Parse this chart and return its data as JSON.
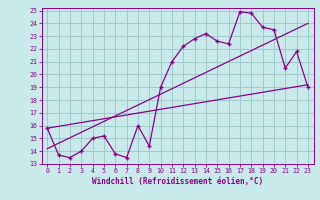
{
  "xlabel": "Windchill (Refroidissement éolien,°C)",
  "ylabel": "",
  "bg_color": "#c8eaea",
  "grid_color": "#a0c8c8",
  "line_color": "#8b008b",
  "xlim": [
    -0.5,
    23.5
  ],
  "ylim": [
    13,
    25.2
  ],
  "xticks": [
    0,
    1,
    2,
    3,
    4,
    5,
    6,
    7,
    8,
    9,
    10,
    11,
    12,
    13,
    14,
    15,
    16,
    17,
    18,
    19,
    20,
    21,
    22,
    23
  ],
  "yticks": [
    13,
    14,
    15,
    16,
    17,
    18,
    19,
    20,
    21,
    22,
    23,
    24,
    25
  ],
  "main_x": [
    0,
    1,
    2,
    3,
    4,
    5,
    6,
    7,
    8,
    9,
    10,
    11,
    12,
    13,
    14,
    15,
    16,
    17,
    18,
    19,
    20,
    21,
    22,
    23
  ],
  "main_y": [
    15.8,
    13.7,
    13.5,
    14.0,
    15.0,
    15.2,
    13.8,
    13.5,
    16.0,
    14.4,
    19.0,
    21.0,
    22.2,
    22.8,
    23.2,
    22.6,
    22.4,
    24.9,
    24.8,
    23.7,
    23.5,
    20.5,
    21.8,
    19.0
  ],
  "line2_x": [
    0,
    23
  ],
  "line2_y": [
    15.8,
    19.2
  ],
  "line3_x": [
    0,
    23
  ],
  "line3_y": [
    14.2,
    24.0
  ]
}
